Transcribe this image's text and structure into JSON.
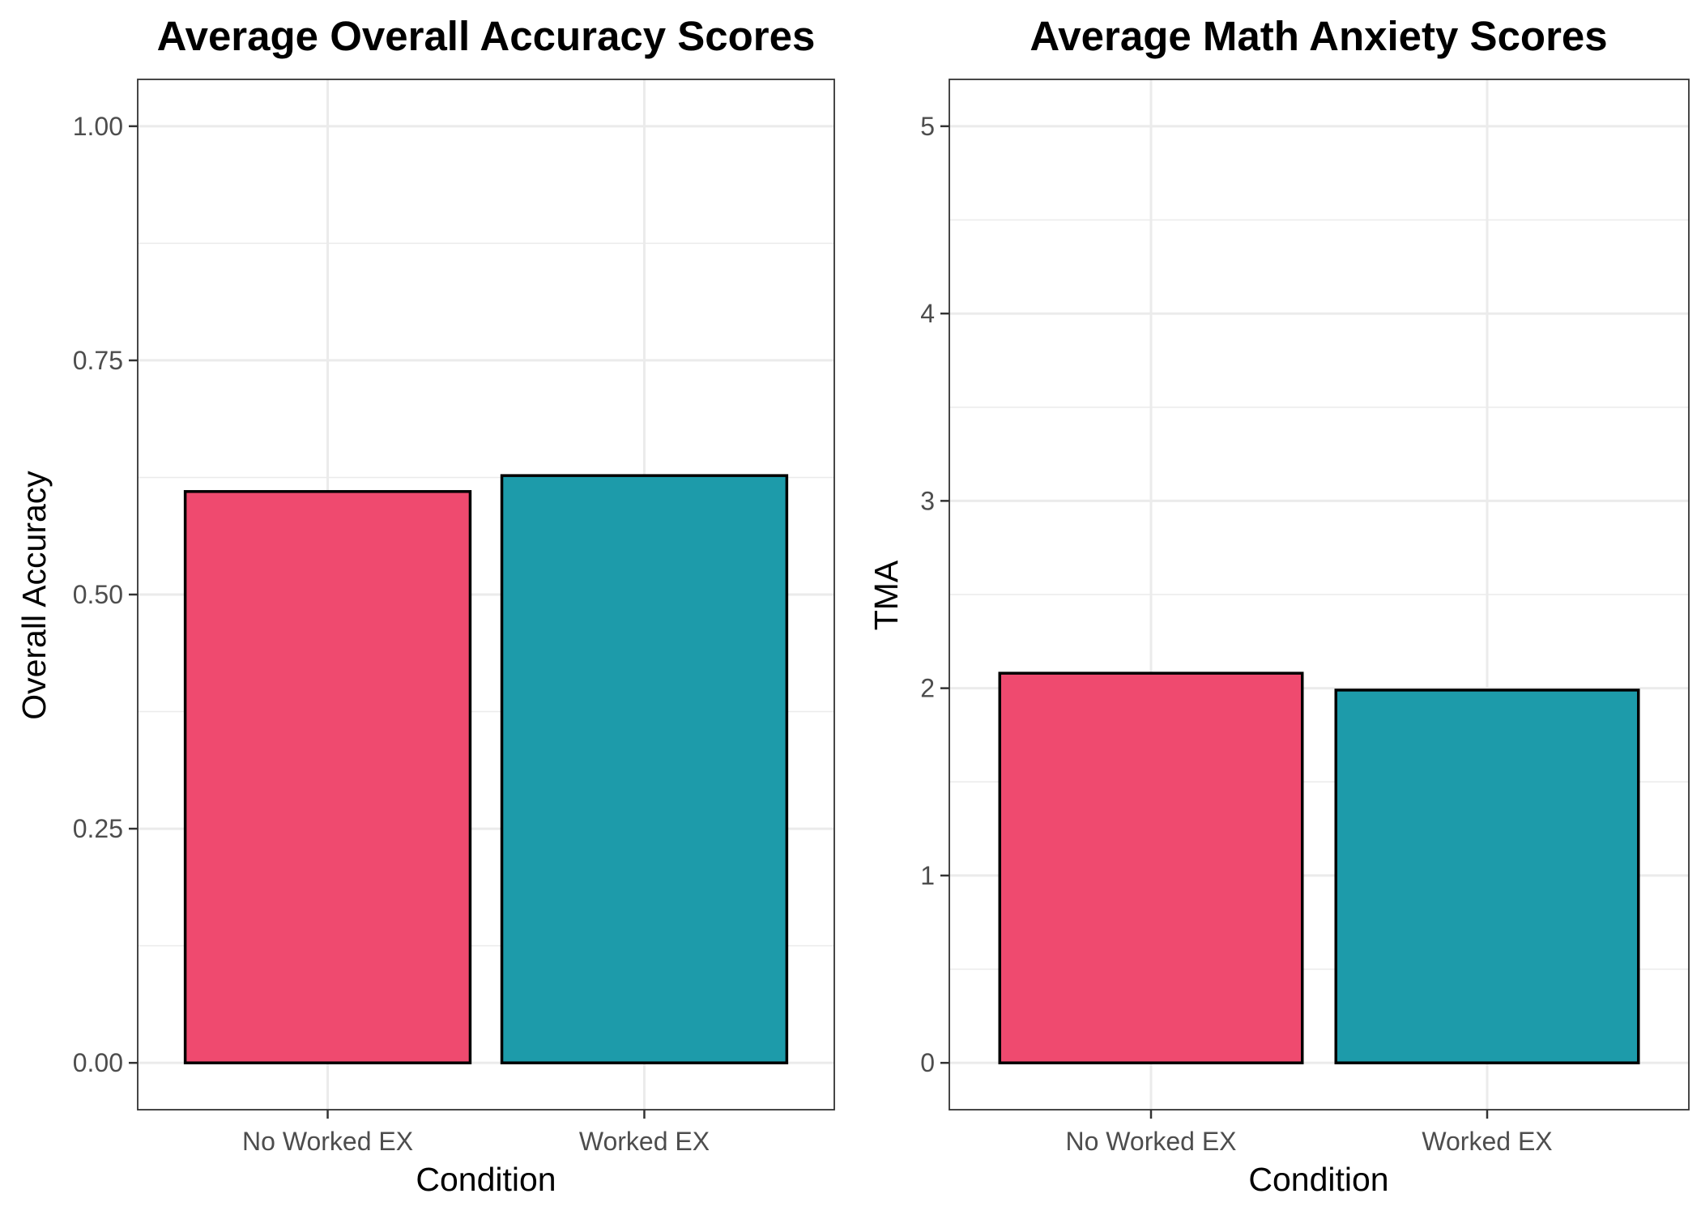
{
  "chart_data": [
    {
      "type": "bar",
      "title": "Average Overall Accuracy Scores",
      "xlabel": "Condition",
      "ylabel": "Overall Accuracy",
      "categories": [
        "No Worked EX",
        "Worked EX"
      ],
      "values": [
        0.61,
        0.627
      ],
      "colors": [
        "#EF4A6F",
        "#1D9BAA"
      ],
      "ylim": [
        -0.05,
        1.05
      ],
      "yticks": [
        0,
        0.25,
        0.5,
        0.75,
        1.0
      ],
      "ytick_labels": [
        "0.00",
        "0.25",
        "0.50",
        "0.75",
        "1.00"
      ],
      "grid": true,
      "legend": "none"
    },
    {
      "type": "bar",
      "title": "Average Math Anxiety Scores",
      "xlabel": "Condition",
      "ylabel": "TMA",
      "categories": [
        "No Worked EX",
        "Worked EX"
      ],
      "values": [
        2.08,
        1.99
      ],
      "colors": [
        "#EF4A6F",
        "#1D9BAA"
      ],
      "ylim": [
        -0.25,
        5.25
      ],
      "yticks": [
        0,
        1,
        2,
        3,
        4,
        5
      ],
      "ytick_labels": [
        "0",
        "1",
        "2",
        "3",
        "4",
        "5"
      ],
      "grid": true,
      "legend": "none"
    }
  ]
}
